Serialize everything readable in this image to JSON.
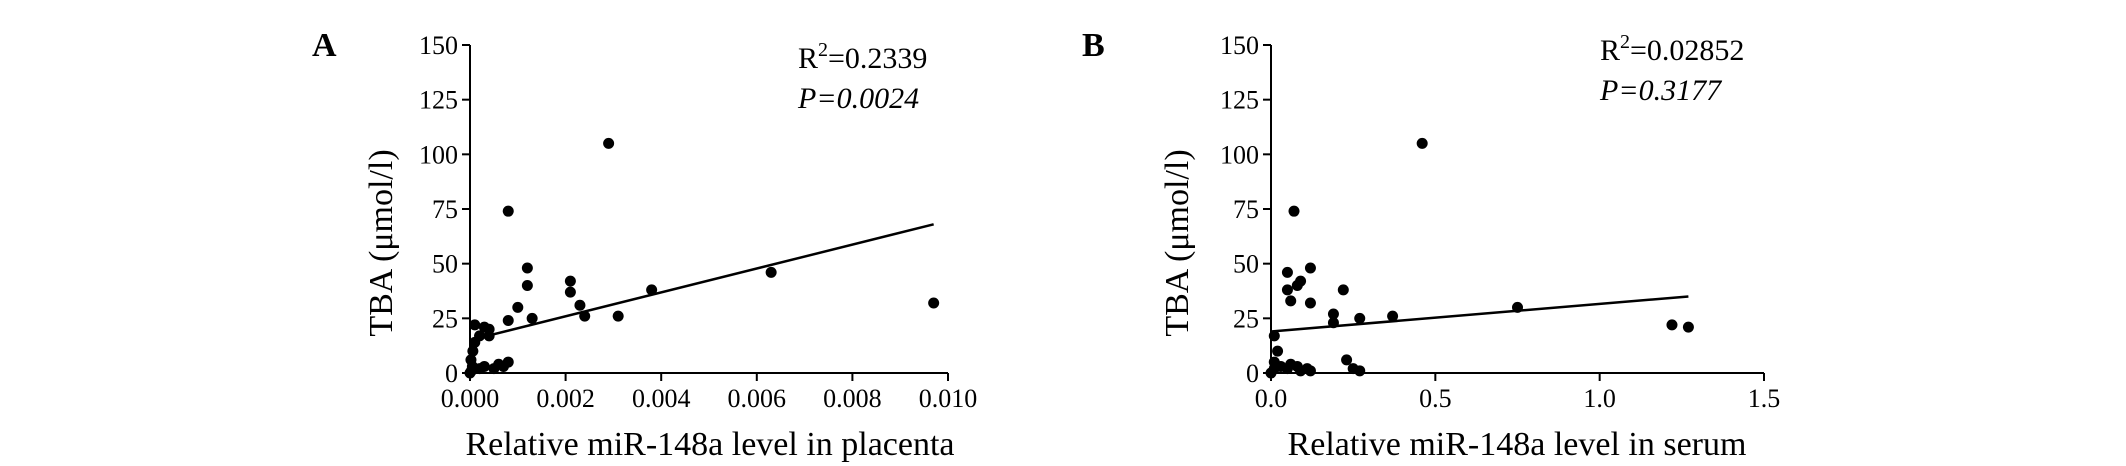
{
  "chart_data": [
    {
      "type": "scatter",
      "panel_label": "A",
      "xlabel": "Relative miR-148a level in placenta",
      "ylabel": "TBA (μmol/l)",
      "xlim": [
        0,
        0.01
      ],
      "ylim": [
        0,
        150
      ],
      "x_ticks": [
        "0.000",
        "0.002",
        "0.004",
        "0.006",
        "0.008",
        "0.010"
      ],
      "y_ticks": [
        "0",
        "25",
        "50",
        "75",
        "100",
        "125",
        "150"
      ],
      "x_tick_values": [
        0,
        0.002,
        0.004,
        0.006,
        0.008,
        0.01
      ],
      "y_tick_values": [
        0,
        25,
        50,
        75,
        100,
        125,
        150
      ],
      "r2_prefix": "R",
      "r2_sup": "2",
      "r2_value": "=0.2339",
      "p_text": "P=0.0024",
      "regression_line": {
        "x": [
          0,
          0.0097
        ],
        "y": [
          15,
          68
        ]
      },
      "points": [
        {
          "x": 0.0,
          "y": 0
        },
        {
          "x": 3e-05,
          "y": 1
        },
        {
          "x": 5e-05,
          "y": 3
        },
        {
          "x": 2e-05,
          "y": 6
        },
        {
          "x": 6e-05,
          "y": 10
        },
        {
          "x": 0.0001,
          "y": 14
        },
        {
          "x": 0.0001,
          "y": 22
        },
        {
          "x": 0.0002,
          "y": 17
        },
        {
          "x": 0.0003,
          "y": 21
        },
        {
          "x": 0.0004,
          "y": 17
        },
        {
          "x": 0.0004,
          "y": 20
        },
        {
          "x": 0.0002,
          "y": 2
        },
        {
          "x": 0.0003,
          "y": 3
        },
        {
          "x": 0.0005,
          "y": 2
        },
        {
          "x": 0.0006,
          "y": 4
        },
        {
          "x": 0.0007,
          "y": 3
        },
        {
          "x": 0.0008,
          "y": 5
        },
        {
          "x": 0.0008,
          "y": 74
        },
        {
          "x": 0.0008,
          "y": 24
        },
        {
          "x": 0.001,
          "y": 30
        },
        {
          "x": 0.0012,
          "y": 48
        },
        {
          "x": 0.0012,
          "y": 40
        },
        {
          "x": 0.0013,
          "y": 25
        },
        {
          "x": 0.0021,
          "y": 42
        },
        {
          "x": 0.0021,
          "y": 37
        },
        {
          "x": 0.0023,
          "y": 31
        },
        {
          "x": 0.0024,
          "y": 26
        },
        {
          "x": 0.0029,
          "y": 105
        },
        {
          "x": 0.0031,
          "y": 26
        },
        {
          "x": 0.0038,
          "y": 38
        },
        {
          "x": 0.0063,
          "y": 46
        },
        {
          "x": 0.0097,
          "y": 32
        }
      ]
    },
    {
      "type": "scatter",
      "panel_label": "B",
      "xlabel": "Relative miR-148a level in serum",
      "ylabel": "TBA (μmol/l)",
      "xlim": [
        0,
        1.5
      ],
      "ylim": [
        0,
        150
      ],
      "x_ticks": [
        "0.0",
        "0.5",
        "1.0",
        "1.5"
      ],
      "y_ticks": [
        "0",
        "25",
        "50",
        "75",
        "100",
        "125",
        "150"
      ],
      "x_tick_values": [
        0,
        0.5,
        1.0,
        1.5
      ],
      "y_tick_values": [
        0,
        25,
        50,
        75,
        100,
        125,
        150
      ],
      "r2_prefix": "R",
      "r2_sup": "2",
      "r2_value": "=0.02852",
      "p_text": "P=0.3177",
      "regression_line": {
        "x": [
          0,
          1.27
        ],
        "y": [
          19,
          35
        ]
      },
      "points": [
        {
          "x": 0.0,
          "y": 0
        },
        {
          "x": 0.01,
          "y": 2
        },
        {
          "x": 0.01,
          "y": 5
        },
        {
          "x": 0.02,
          "y": 10
        },
        {
          "x": 0.01,
          "y": 17
        },
        {
          "x": 0.03,
          "y": 3
        },
        {
          "x": 0.05,
          "y": 2
        },
        {
          "x": 0.06,
          "y": 4
        },
        {
          "x": 0.08,
          "y": 3
        },
        {
          "x": 0.09,
          "y": 1
        },
        {
          "x": 0.11,
          "y": 2
        },
        {
          "x": 0.12,
          "y": 1
        },
        {
          "x": 0.05,
          "y": 38
        },
        {
          "x": 0.05,
          "y": 46
        },
        {
          "x": 0.06,
          "y": 33
        },
        {
          "x": 0.08,
          "y": 40
        },
        {
          "x": 0.09,
          "y": 42
        },
        {
          "x": 0.07,
          "y": 74
        },
        {
          "x": 0.12,
          "y": 48
        },
        {
          "x": 0.12,
          "y": 32
        },
        {
          "x": 0.19,
          "y": 23
        },
        {
          "x": 0.19,
          "y": 27
        },
        {
          "x": 0.22,
          "y": 38
        },
        {
          "x": 0.23,
          "y": 6
        },
        {
          "x": 0.25,
          "y": 2
        },
        {
          "x": 0.27,
          "y": 1
        },
        {
          "x": 0.27,
          "y": 25
        },
        {
          "x": 0.37,
          "y": 26
        },
        {
          "x": 0.46,
          "y": 105
        },
        {
          "x": 0.75,
          "y": 30
        },
        {
          "x": 1.22,
          "y": 22
        },
        {
          "x": 1.27,
          "y": 21
        }
      ]
    }
  ]
}
